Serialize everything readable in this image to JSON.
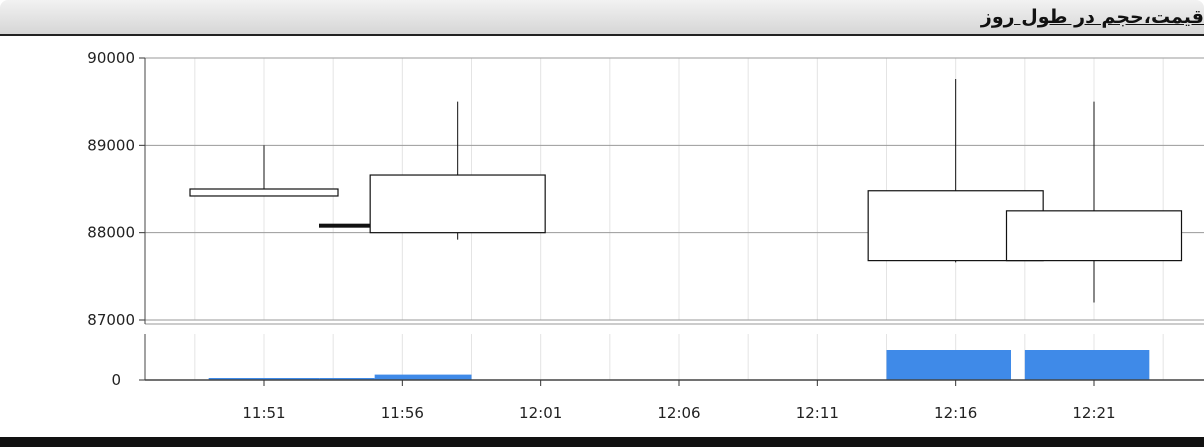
{
  "header": {
    "title": "قیمت،حجم در طول روز"
  },
  "chart_data": {
    "type": "candlestick",
    "title": "قیمت،حجم در طول روز",
    "price_axis": {
      "ticks": [
        "90000",
        "89000",
        "88000",
        "87000"
      ],
      "range": [
        87000,
        90000
      ]
    },
    "volume_axis": {
      "ticks": [
        "0"
      ]
    },
    "x_ticks": [
      "11:51",
      "11:56",
      "12:01",
      "12:06",
      "12:11",
      "12:16",
      "12:21"
    ],
    "x_range": [
      "11:48",
      "12:24"
    ],
    "grid": true,
    "candles": [
      {
        "time": "11:51",
        "open": 88500,
        "close": 88420,
        "high": 89000,
        "low": 88420
      },
      {
        "time": "11:54",
        "open": 88080,
        "close": 88080,
        "high": 88080,
        "low": 88080
      },
      {
        "time": "11:58",
        "open": 88000,
        "close": 88660,
        "high": 89500,
        "low": 87920
      },
      {
        "time": "12:16",
        "open": 87680,
        "close": 88480,
        "high": 89760,
        "low": 87660
      },
      {
        "time": "12:21",
        "open": 88250,
        "close": 87680,
        "high": 89500,
        "low": 87200
      }
    ],
    "volume": {
      "color": "#3f8ae8",
      "bars": [
        {
          "from": "11:49",
          "to": "11:53",
          "level": 0.04
        },
        {
          "from": "11:53",
          "to": "11:55",
          "level": 0.04
        },
        {
          "from": "11:55",
          "to": "11:58.5",
          "level": 0.18
        },
        {
          "from": "12:13.5",
          "to": "12:18",
          "level": 1.0
        },
        {
          "from": "12:18.5",
          "to": "12:23",
          "level": 1.0
        }
      ]
    }
  }
}
